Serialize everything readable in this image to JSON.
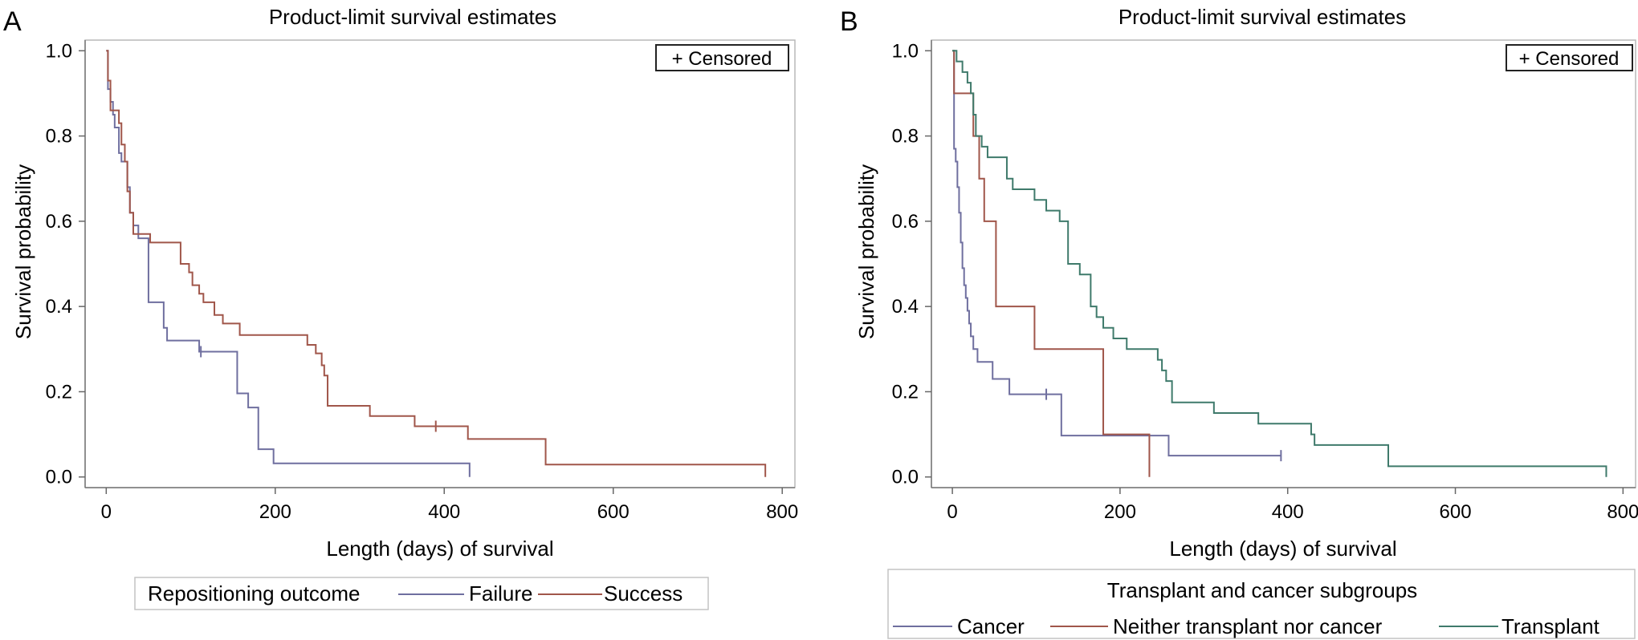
{
  "chart_data": [
    {
      "type": "line",
      "panel_label": "A",
      "title": "Product-limit survival estimates",
      "xlabel": "Length (days) of survival",
      "ylabel": "Survival probability",
      "xlim": [
        -25,
        815
      ],
      "ylim": [
        -0.025,
        1.025
      ],
      "xticks": [
        0,
        200,
        400,
        600,
        800
      ],
      "yticks": [
        0.0,
        0.2,
        0.4,
        0.6,
        0.8,
        1.0
      ],
      "ytick_labels": [
        "0.0",
        "0.2",
        "0.4",
        "0.6",
        "0.8",
        "1.0"
      ],
      "censored_label": "+ Censored",
      "legend_title": "Repositioning outcome",
      "series": [
        {
          "name": "Failure",
          "color": "#6f6f9f",
          "steps": [
            [
              0,
              1.0
            ],
            [
              2,
              0.91
            ],
            [
              5,
              0.88
            ],
            [
              8,
              0.85
            ],
            [
              10,
              0.82
            ],
            [
              15,
              0.76
            ],
            [
              18,
              0.74
            ],
            [
              25,
              0.68
            ],
            [
              28,
              0.62
            ],
            [
              32,
              0.59
            ],
            [
              38,
              0.56
            ],
            [
              50,
              0.41
            ],
            [
              68,
              0.35
            ],
            [
              72,
              0.32
            ],
            [
              88,
              0.32
            ],
            [
              110,
              0.294
            ],
            [
              155,
              0.196
            ],
            [
              168,
              0.163
            ],
            [
              180,
              0.065
            ],
            [
              198,
              0.032
            ],
            [
              430,
              0.0
            ]
          ],
          "censored": [
            [
              112,
              0.294
            ]
          ]
        },
        {
          "name": "Success",
          "color": "#a0564a",
          "steps": [
            [
              0,
              1.0
            ],
            [
              2,
              0.93
            ],
            [
              5,
              0.86
            ],
            [
              15,
              0.83
            ],
            [
              18,
              0.78
            ],
            [
              22,
              0.74
            ],
            [
              25,
              0.67
            ],
            [
              28,
              0.62
            ],
            [
              32,
              0.57
            ],
            [
              52,
              0.55
            ],
            [
              88,
              0.5
            ],
            [
              98,
              0.48
            ],
            [
              102,
              0.45
            ],
            [
              110,
              0.43
            ],
            [
              115,
              0.41
            ],
            [
              128,
              0.38
            ],
            [
              138,
              0.36
            ],
            [
              158,
              0.333
            ],
            [
              238,
              0.31
            ],
            [
              248,
              0.29
            ],
            [
              255,
              0.262
            ],
            [
              258,
              0.238
            ],
            [
              262,
              0.167
            ],
            [
              312,
              0.143
            ],
            [
              365,
              0.119
            ],
            [
              428,
              0.089
            ],
            [
              520,
              0.029
            ],
            [
              780,
              0.0
            ]
          ],
          "censored": [
            [
              390,
              0.119
            ]
          ]
        }
      ]
    },
    {
      "type": "line",
      "panel_label": "B",
      "title": "Product-limit survival estimates",
      "xlabel": "Length (days) of survival",
      "ylabel": "Survival probability",
      "xlim": [
        -25,
        815
      ],
      "ylim": [
        -0.025,
        1.025
      ],
      "xticks": [
        0,
        200,
        400,
        600,
        800
      ],
      "yticks": [
        0.0,
        0.2,
        0.4,
        0.6,
        0.8,
        1.0
      ],
      "ytick_labels": [
        "0.0",
        "0.2",
        "0.4",
        "0.6",
        "0.8",
        "1.0"
      ],
      "censored_label": "+ Censored",
      "legend_title": "Transplant and cancer subgroups",
      "series": [
        {
          "name": "Cancer",
          "color": "#6f6f9f",
          "steps": [
            [
              0,
              1.0
            ],
            [
              2,
              0.77
            ],
            [
              4,
              0.74
            ],
            [
              6,
              0.68
            ],
            [
              8,
              0.62
            ],
            [
              10,
              0.55
            ],
            [
              12,
              0.49
            ],
            [
              14,
              0.45
            ],
            [
              16,
              0.42
            ],
            [
              18,
              0.39
            ],
            [
              20,
              0.36
            ],
            [
              22,
              0.33
            ],
            [
              25,
              0.3
            ],
            [
              30,
              0.27
            ],
            [
              48,
              0.23
            ],
            [
              68,
              0.194
            ],
            [
              102,
              0.194
            ],
            [
              130,
              0.097
            ],
            [
              258,
              0.05
            ],
            [
              392,
              0.05
            ]
          ],
          "censored": [
            [
              112,
              0.194
            ],
            [
              392,
              0.05
            ]
          ]
        },
        {
          "name": "Neither transplant nor cancer",
          "color": "#a0564a",
          "steps": [
            [
              0,
              1.0
            ],
            [
              2,
              0.9
            ],
            [
              25,
              0.8
            ],
            [
              32,
              0.7
            ],
            [
              38,
              0.6
            ],
            [
              52,
              0.4
            ],
            [
              98,
              0.3
            ],
            [
              180,
              0.1
            ],
            [
              235,
              0.0
            ]
          ],
          "censored": []
        },
        {
          "name": "Transplant",
          "color": "#3f7a6b",
          "steps": [
            [
              0,
              1.0
            ],
            [
              5,
              0.975
            ],
            [
              12,
              0.95
            ],
            [
              18,
              0.925
            ],
            [
              22,
              0.9
            ],
            [
              25,
              0.85
            ],
            [
              28,
              0.8
            ],
            [
              35,
              0.775
            ],
            [
              42,
              0.75
            ],
            [
              65,
              0.7
            ],
            [
              72,
              0.675
            ],
            [
              98,
              0.65
            ],
            [
              112,
              0.625
            ],
            [
              128,
              0.6
            ],
            [
              138,
              0.5
            ],
            [
              152,
              0.475
            ],
            [
              165,
              0.4
            ],
            [
              172,
              0.375
            ],
            [
              180,
              0.35
            ],
            [
              192,
              0.325
            ],
            [
              208,
              0.3
            ],
            [
              245,
              0.275
            ],
            [
              250,
              0.25
            ],
            [
              255,
              0.225
            ],
            [
              262,
              0.175
            ],
            [
              312,
              0.15
            ],
            [
              365,
              0.125
            ],
            [
              428,
              0.1
            ],
            [
              432,
              0.075
            ],
            [
              520,
              0.025
            ],
            [
              780,
              0.0
            ]
          ],
          "censored": []
        }
      ]
    }
  ]
}
